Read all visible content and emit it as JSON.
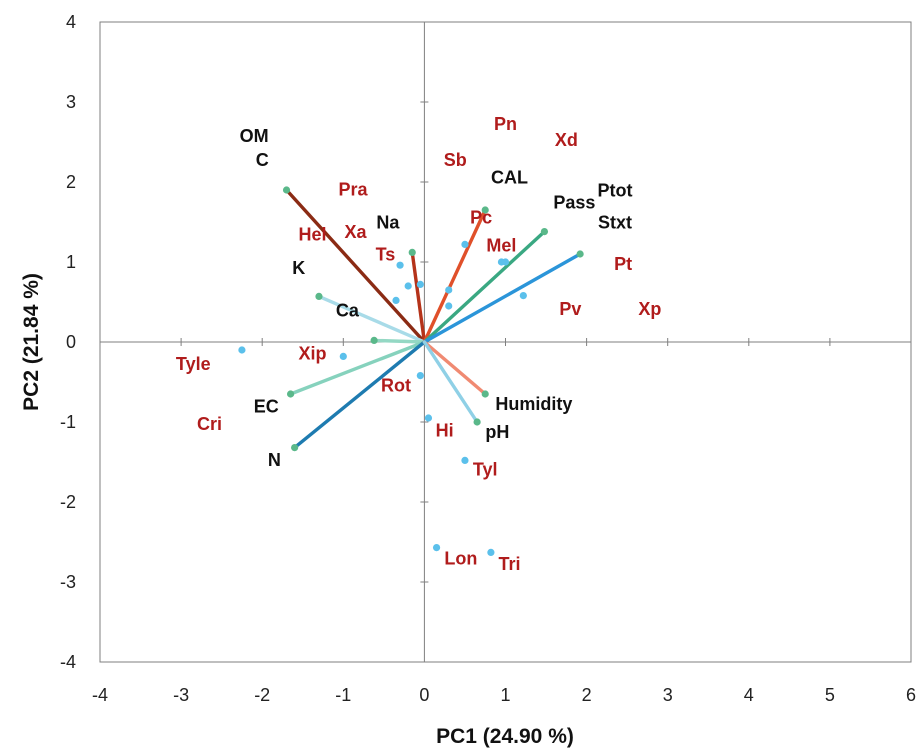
{
  "chart_data": {
    "type": "scatter",
    "subtype": "pca-biplot",
    "title": "",
    "xlabel": "PC1 (24.90 %)",
    "ylabel": "PC2 (21.84 %)",
    "xlim": [
      -4,
      6
    ],
    "ylim": [
      -4,
      4
    ],
    "xticks": [
      "-4",
      "-3",
      "-2",
      "-1",
      "0",
      "1",
      "2",
      "3",
      "4",
      "5",
      "6"
    ],
    "yticks": [
      "4",
      "3",
      "2",
      "1",
      "0",
      "-1",
      "-2",
      "-3",
      "-4"
    ],
    "grid": false,
    "legend": "none",
    "colors": {
      "variable_label": "#111111",
      "species_label": "#b01c1c",
      "species_point": "#5bc0eb",
      "vector_tip": "#5ab88a",
      "axis_line": "#7f7f7f"
    },
    "vectors": [
      {
        "name": "OM / C",
        "x": -1.7,
        "y": 1.9,
        "color": "#8b2b14",
        "labels": [
          "OM",
          "C"
        ]
      },
      {
        "name": "Na",
        "x": -0.15,
        "y": 1.12,
        "color": "#b5331a",
        "labels": [
          "Na"
        ]
      },
      {
        "name": "K",
        "x": -1.3,
        "y": 0.57,
        "color": "#a8dbe8",
        "labels": [
          "K"
        ]
      },
      {
        "name": "Ca",
        "x": -0.62,
        "y": 0.02,
        "color": "#94d8c4",
        "labels": [
          "Ca"
        ]
      },
      {
        "name": "EC",
        "x": -1.65,
        "y": -0.65,
        "color": "#86d2bd",
        "labels": [
          "EC"
        ]
      },
      {
        "name": "N",
        "x": -1.6,
        "y": -1.32,
        "color": "#1e7bb0",
        "labels": [
          "N"
        ]
      },
      {
        "name": "CAL",
        "x": 0.75,
        "y": 1.65,
        "color": "#e0502a",
        "labels": [
          "CAL"
        ]
      },
      {
        "name": "Pass",
        "x": 1.48,
        "y": 1.38,
        "color": "#3aa882",
        "labels": [
          "Pass"
        ]
      },
      {
        "name": "Ptot / Stxt",
        "x": 1.92,
        "y": 1.1,
        "color": "#2b95d9",
        "labels": [
          "Ptot",
          "Stxt"
        ]
      },
      {
        "name": "Humidity",
        "x": 0.75,
        "y": -0.65,
        "color": "#f08a72",
        "labels": [
          "Humidity"
        ]
      },
      {
        "name": "pH",
        "x": 0.65,
        "y": -1.0,
        "color": "#8fd0e6",
        "labels": [
          "pH"
        ]
      }
    ],
    "species_points": [
      {
        "name": "Tyle",
        "x": -2.25,
        "y": -0.1
      },
      {
        "name": "Xip",
        "x": -1.0,
        "y": -0.18
      },
      {
        "name": "Ts",
        "x": -0.3,
        "y": 0.96
      },
      {
        "name": "Hel",
        "x": -0.2,
        "y": 0.7
      },
      {
        "name": "Xa",
        "x": -0.35,
        "y": 0.52
      },
      {
        "name": "Pra",
        "x": -0.05,
        "y": 0.72
      },
      {
        "name": "Sb",
        "x": 0.5,
        "y": 1.22
      },
      {
        "name": "Pc",
        "x": 0.3,
        "y": 0.65
      },
      {
        "name": "Mel",
        "x": 0.3,
        "y": 0.45
      },
      {
        "name": "Pn",
        "x": 0.95,
        "y": 1.0
      },
      {
        "name": "Xd",
        "x": 1.0,
        "y": 1.0
      },
      {
        "name": "Pv",
        "x": 1.22,
        "y": 0.58
      },
      {
        "name": "Rot",
        "x": -0.05,
        "y": -0.42
      },
      {
        "name": "Hi",
        "x": 0.05,
        "y": -0.95
      },
      {
        "name": "Tyl",
        "x": 0.5,
        "y": -1.48
      },
      {
        "name": "Lon",
        "x": 0.15,
        "y": -2.57
      },
      {
        "name": "Tri",
        "x": 0.82,
        "y": -2.63
      }
    ],
    "variable_labels": [
      {
        "text": "OM",
        "x": -2.1,
        "y": 2.5
      },
      {
        "text": "C",
        "x": -2.0,
        "y": 2.2
      },
      {
        "text": "Na",
        "x": -0.45,
        "y": 1.42
      },
      {
        "text": "K",
        "x": -1.55,
        "y": 0.85
      },
      {
        "text": "Ca",
        "x": -0.95,
        "y": 0.32
      },
      {
        "text": "EC",
        "x": -1.95,
        "y": -0.88
      },
      {
        "text": "N",
        "x": -1.85,
        "y": -1.55
      },
      {
        "text": "CAL",
        "x": 1.05,
        "y": 1.98
      },
      {
        "text": "Pass",
        "x": 1.85,
        "y": 1.67
      },
      {
        "text": "Ptot",
        "x": 2.35,
        "y": 1.82
      },
      {
        "text": "Stxt",
        "x": 2.35,
        "y": 1.42
      },
      {
        "text": "Humidity",
        "x": 1.35,
        "y": -0.85
      },
      {
        "text": "pH",
        "x": 0.9,
        "y": -1.2
      }
    ],
    "species_labels": [
      {
        "text": "Pn",
        "x": 1.0,
        "y": 2.65
      },
      {
        "text": "Xd",
        "x": 1.75,
        "y": 2.45
      },
      {
        "text": "Sb",
        "x": 0.38,
        "y": 2.2
      },
      {
        "text": "Pra",
        "x": -0.88,
        "y": 1.83
      },
      {
        "text": "Xa",
        "x": -0.85,
        "y": 1.3
      },
      {
        "text": "Hel",
        "x": -1.38,
        "y": 1.27
      },
      {
        "text": "Ts",
        "x": -0.48,
        "y": 1.02
      },
      {
        "text": "Pc",
        "x": 0.7,
        "y": 1.48
      },
      {
        "text": "Mel",
        "x": 0.95,
        "y": 1.13
      },
      {
        "text": "Pt",
        "x": 2.45,
        "y": 0.9
      },
      {
        "text": "Pv",
        "x": 1.8,
        "y": 0.34
      },
      {
        "text": "Xp",
        "x": 2.78,
        "y": 0.34
      },
      {
        "text": "Tyle",
        "x": -2.85,
        "y": -0.35
      },
      {
        "text": "Xip",
        "x": -1.38,
        "y": -0.22
      },
      {
        "text": "Rot",
        "x": -0.35,
        "y": -0.62
      },
      {
        "text": "Cri",
        "x": -2.65,
        "y": -1.1
      },
      {
        "text": "Hi",
        "x": 0.25,
        "y": -1.18
      },
      {
        "text": "Tyl",
        "x": 0.75,
        "y": -1.67
      },
      {
        "text": "Lon",
        "x": 0.45,
        "y": -2.78
      },
      {
        "text": "Tri",
        "x": 1.05,
        "y": -2.85
      }
    ]
  }
}
